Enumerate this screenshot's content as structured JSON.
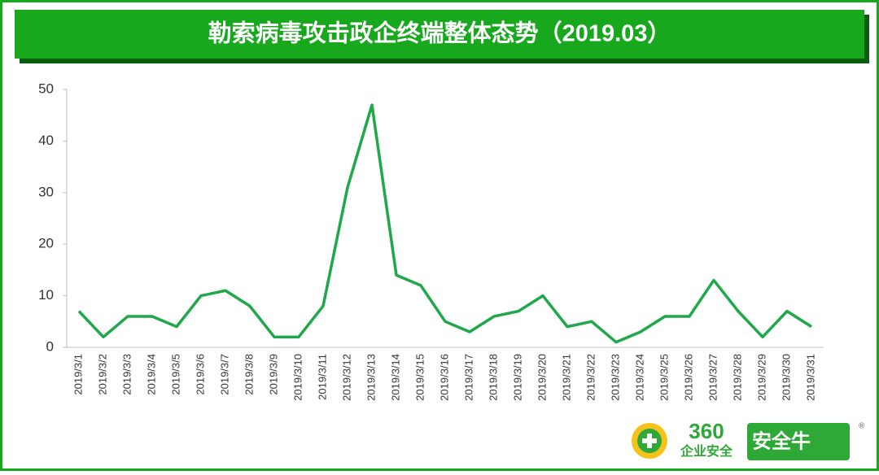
{
  "chart_data": {
    "type": "line",
    "title": "勒索病毒攻击政企终端整体态势（2019.03）",
    "categories": [
      "2019/3/1",
      "2019/3/2",
      "2019/3/3",
      "2019/3/4",
      "2019/3/5",
      "2019/3/6",
      "2019/3/7",
      "2019/3/8",
      "2019/3/9",
      "2019/3/10",
      "2019/3/11",
      "2019/3/12",
      "2019/3/13",
      "2019/3/14",
      "2019/3/15",
      "2019/3/16",
      "2019/3/17",
      "2019/3/18",
      "2019/3/19",
      "2019/3/20",
      "2019/3/21",
      "2019/3/22",
      "2019/3/23",
      "2019/3/24",
      "2019/3/25",
      "2019/3/26",
      "2019/3/27",
      "2019/3/28",
      "2019/3/29",
      "2019/3/30",
      "2019/3/31"
    ],
    "values": [
      7,
      2,
      6,
      6,
      4,
      10,
      11,
      8,
      2,
      2,
      8,
      31,
      47,
      14,
      12,
      5,
      3,
      6,
      7,
      10,
      4,
      5,
      1,
      3,
      6,
      6,
      13,
      7,
      2,
      7,
      4
    ],
    "color": "#1fa84a",
    "ylim": [
      0,
      50
    ],
    "yticks": [
      0,
      10,
      20,
      30,
      40,
      50
    ],
    "grid": false
  },
  "logo": {
    "brand": "360",
    "sub": "企业安全",
    "badge": "安全牛",
    "mark": "®"
  }
}
